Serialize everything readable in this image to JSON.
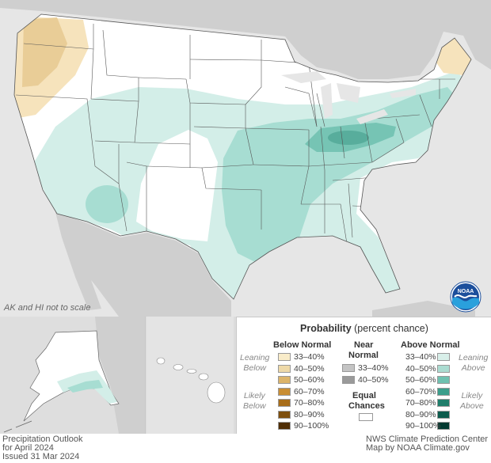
{
  "map": {
    "scale_note": "AK and HI not to scale",
    "logo_icon": "noaa-logo-icon",
    "categories": {
      "above_leaning": "#d3eee8",
      "above_4050": "#a7ddd2",
      "above_5060": "#76c4b4",
      "above_6070": "#4aa896",
      "below_leaning": "#f6e3bc",
      "below_4050": "#e9cd97",
      "equal_chances": "#ffffff"
    }
  },
  "legend": {
    "title_bold": "Probability",
    "title_rest": "(percent chance)",
    "below": {
      "header": "Below Normal",
      "leaning_label": [
        "Leaning",
        "Below"
      ],
      "likely_label": [
        "Likely",
        "Below"
      ],
      "rows": [
        {
          "label": "33–40%",
          "color": "#f9ecc9"
        },
        {
          "label": "40–50%",
          "color": "#eed9a8"
        },
        {
          "label": "50–60%",
          "color": "#dcb46a"
        },
        {
          "label": "60–70%",
          "color": "#c98e34"
        },
        {
          "label": "70–80%",
          "color": "#a86d1a"
        },
        {
          "label": "80–90%",
          "color": "#7e4f0e"
        },
        {
          "label": "90–100%",
          "color": "#4f2e05"
        }
      ]
    },
    "near": {
      "header": [
        "Near",
        "Normal"
      ],
      "rows": [
        {
          "label": "33–40%",
          "color": "#c4c4c4"
        },
        {
          "label": "40–50%",
          "color": "#9a9a9a"
        }
      ]
    },
    "equal": {
      "label": [
        "Equal",
        "Chances"
      ],
      "color": "#ffffff"
    },
    "above": {
      "header": "Above Normal",
      "leaning_label": [
        "Leaning",
        "Above"
      ],
      "likely_label": [
        "Likely",
        "Above"
      ],
      "rows": [
        {
          "label": "33–40%",
          "color": "#d8efe9"
        },
        {
          "label": "40–50%",
          "color": "#abdcd1"
        },
        {
          "label": "50–60%",
          "color": "#6fc1b0"
        },
        {
          "label": "60–70%",
          "color": "#3b9e8b"
        },
        {
          "label": "70–80%",
          "color": "#1f7e6b"
        },
        {
          "label": "80–90%",
          "color": "#0c5c4d"
        },
        {
          "label": "90–100%",
          "color": "#033a31"
        }
      ]
    }
  },
  "footer": {
    "outlook_title": "Precipitation Outlook",
    "period": "for April 2024",
    "issued": "Issued 31 Mar 2024",
    "center": "NWS Climate Prediction Center",
    "credit": "Map by NOAA Climate.gov"
  }
}
